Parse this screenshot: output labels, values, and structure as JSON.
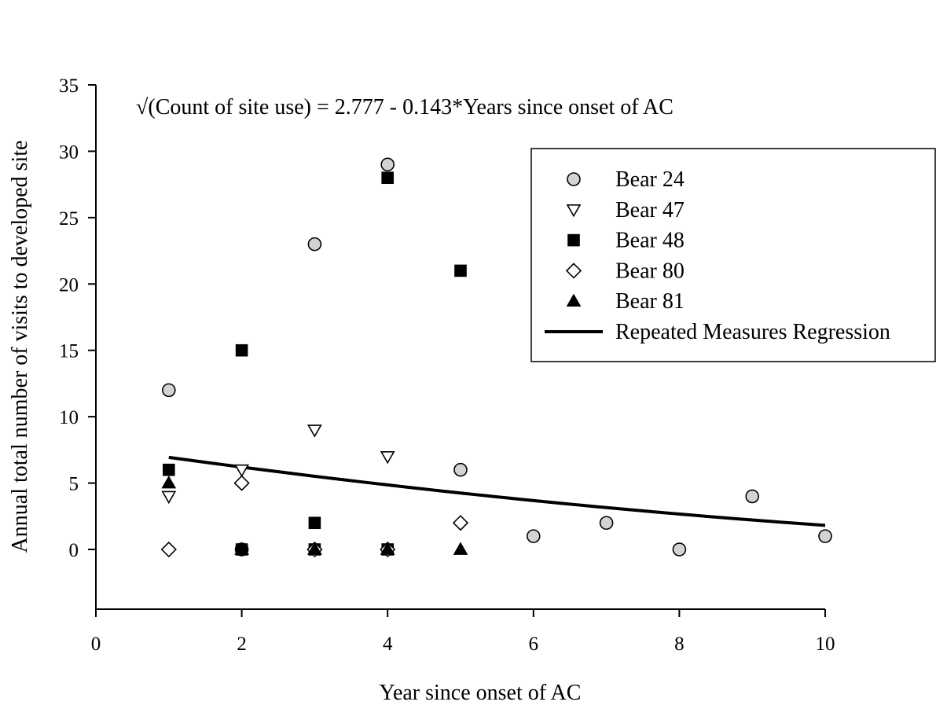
{
  "chart_data": {
    "type": "scatter",
    "equation": "√(Count of site use) = 2.777 - 0.143*Years since onset of AC",
    "xlabel": "Year since onset of AC",
    "ylabel": "Annual total number of visits to developed site",
    "xlim": [
      0,
      10
    ],
    "ylim": [
      -4.5,
      35
    ],
    "xticks": [
      0,
      2,
      4,
      6,
      8,
      10
    ],
    "yticks": [
      0,
      5,
      10,
      15,
      20,
      25,
      30,
      35
    ],
    "legend_position": "top-right",
    "grid": false,
    "series": [
      {
        "name": "Bear 24",
        "marker": "circle",
        "fill": "#d3d3d3",
        "stroke": "#000000",
        "points": [
          [
            1,
            12
          ],
          [
            2,
            0
          ],
          [
            3,
            23
          ],
          [
            4,
            29
          ],
          [
            5,
            6
          ],
          [
            6,
            1
          ],
          [
            7,
            2
          ],
          [
            8,
            0
          ],
          [
            9,
            4
          ],
          [
            10,
            1
          ]
        ]
      },
      {
        "name": "Bear 47",
        "marker": "triangle-down",
        "fill": "#ffffff",
        "stroke": "#000000",
        "points": [
          [
            1,
            4
          ],
          [
            2,
            6
          ],
          [
            3,
            9
          ],
          [
            4,
            7
          ]
        ]
      },
      {
        "name": "Bear 48",
        "marker": "square",
        "fill": "#000000",
        "stroke": "#000000",
        "points": [
          [
            1,
            6
          ],
          [
            2,
            15
          ],
          [
            3,
            2
          ],
          [
            4,
            28
          ],
          [
            5,
            21
          ],
          [
            2,
            0
          ],
          [
            3,
            0
          ],
          [
            4,
            0
          ]
        ]
      },
      {
        "name": "Bear 80",
        "marker": "diamond",
        "fill": "#ffffff",
        "stroke": "#000000",
        "points": [
          [
            1,
            0
          ],
          [
            2,
            5
          ],
          [
            3,
            0
          ],
          [
            4,
            0
          ],
          [
            5,
            2
          ]
        ]
      },
      {
        "name": "Bear 81",
        "marker": "triangle-up",
        "fill": "#000000",
        "stroke": "#000000",
        "points": [
          [
            1,
            5
          ],
          [
            2,
            0
          ],
          [
            3,
            0
          ],
          [
            4,
            0
          ],
          [
            5,
            0
          ]
        ]
      }
    ],
    "regression": {
      "name": "Repeated Measures Regression",
      "intercept": 2.777,
      "slope": -0.143,
      "transform": "sqrt",
      "x_range": [
        1,
        10
      ]
    }
  }
}
